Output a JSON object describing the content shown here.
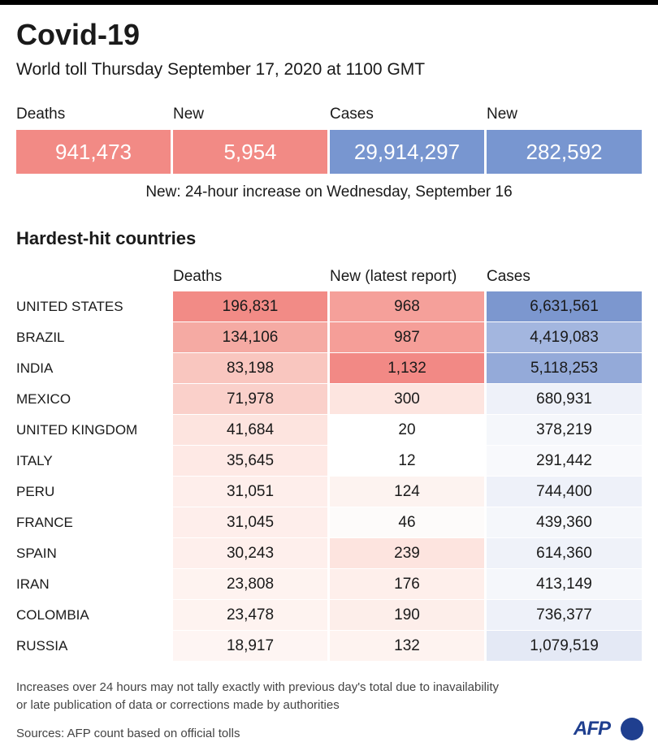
{
  "header": {
    "title": "Covid-19",
    "subtitle": "World toll Thursday September 17, 2020 at 1100 GMT"
  },
  "summary": [
    {
      "label": "Deaths",
      "value": "941,473",
      "color": "#f28a85"
    },
    {
      "label": "New",
      "value": "5,954",
      "color": "#f28a85"
    },
    {
      "label": "Cases",
      "value": "29,914,297",
      "color": "#7896d0"
    },
    {
      "label": "New",
      "value": "282,592",
      "color": "#7896d0"
    }
  ],
  "summary_note": "New: 24-hour increase on Wednesday, September 16",
  "section_title": "Hardest-hit countries",
  "table": {
    "columns": [
      "Deaths",
      "New (latest report)",
      "Cases"
    ],
    "rows": [
      [
        "UNITED STATES",
        "196,831",
        "968",
        "6,631,561"
      ],
      [
        "BRAZIL",
        "134,106",
        "987",
        "4,419,083"
      ],
      [
        "INDIA",
        "83,198",
        "1,132",
        "5,118,253"
      ],
      [
        "MEXICO",
        "71,978",
        "300",
        "680,931"
      ],
      [
        "UNITED KINGDOM",
        "41,684",
        "20",
        "378,219"
      ],
      [
        "ITALY",
        "35,645",
        "12",
        "291,442"
      ],
      [
        "PERU",
        "31,051",
        "124",
        "744,400"
      ],
      [
        "FRANCE",
        "31,045",
        "46",
        "439,360"
      ],
      [
        "SPAIN",
        "30,243",
        "239",
        "614,360"
      ],
      [
        "IRAN",
        "23,808",
        "176",
        "413,149"
      ],
      [
        "COLOMBIA",
        "23,478",
        "190",
        "736,377"
      ],
      [
        "RUSSIA",
        "18,917",
        "132",
        "1,079,519"
      ]
    ],
    "cell_colors": [
      [
        "#f28b86",
        "#f5a09a",
        "#7c97cf"
      ],
      [
        "#f5aaa3",
        "#f59e98",
        "#a3b6df"
      ],
      [
        "#f9c6bf",
        "#f28985",
        "#94aad9"
      ],
      [
        "#fad0ca",
        "#fde5e0",
        "#eef1f9"
      ],
      [
        "#fde4df",
        "#ffffff",
        "#f5f7fb"
      ],
      [
        "#fee9e5",
        "#ffffff",
        "#f8f9fc"
      ],
      [
        "#feeeeb",
        "#fdf3f0",
        "#eef1f9"
      ],
      [
        "#feeeeb",
        "#fdfbfa",
        "#f5f7fb"
      ],
      [
        "#feefec",
        "#fde4df",
        "#eff2f9"
      ],
      [
        "#fef3f0",
        "#feefeb",
        "#f5f7fb"
      ],
      [
        "#fef3f0",
        "#fdeeea",
        "#eef1f9"
      ],
      [
        "#fef5f3",
        "#fef3f0",
        "#e4e9f5"
      ]
    ]
  },
  "footnote": [
    "Increases over 24 hours may not tally exactly with previous day's total due to inavailability",
    "or late publication of data or corrections made by authorities"
  ],
  "source": "Sources: AFP count based on official tolls",
  "logo": "AFP"
}
